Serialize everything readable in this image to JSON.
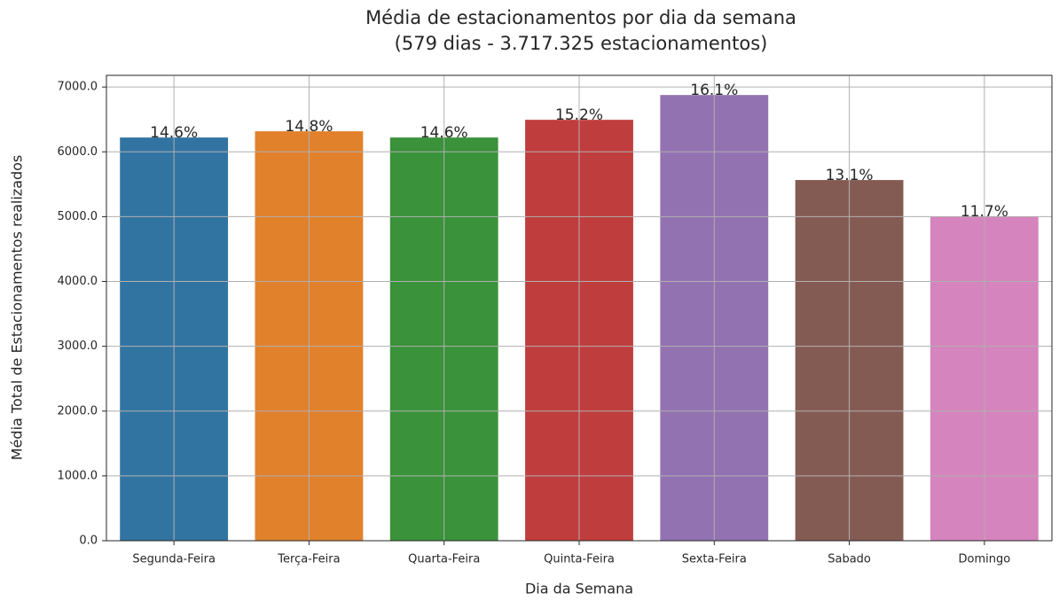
{
  "chart_data": {
    "type": "bar",
    "title": "Média de estacionamentos por dia da semana",
    "subtitle": "(579 dias - 3.717.325 estacionamentos)",
    "xlabel": "Dia da Semana",
    "ylabel": "Média Total de Estacionamentos realizados",
    "categories": [
      "Segunda-Feira",
      "Terça-Feira",
      "Quarta-Feira",
      "Quinta-Feira",
      "Sexta-Feira",
      "Sabado",
      "Domingo"
    ],
    "values": [
      6221,
      6317,
      6221,
      6494,
      6877,
      5565,
      5004
    ],
    "percent_labels": [
      "14.6%",
      "14.8%",
      "14.6%",
      "15.2%",
      "16.1%",
      "13.1%",
      "11.7%"
    ],
    "colors": [
      "#3274a1",
      "#e1812c",
      "#3a923a",
      "#c03d3e",
      "#9372b2",
      "#845b53",
      "#d684bd"
    ],
    "ylim": [
      0,
      7180
    ],
    "yticks": [
      {
        "value": 0,
        "label": "0.0"
      },
      {
        "value": 1000,
        "label": "1000.0"
      },
      {
        "value": 2000,
        "label": "2000.0"
      },
      {
        "value": 3000,
        "label": "3000.0"
      },
      {
        "value": 4000,
        "label": "4000.0"
      },
      {
        "value": 5000,
        "label": "5000.0"
      },
      {
        "value": 6000,
        "label": "6000.0"
      },
      {
        "value": 7000,
        "label": "7000.0"
      }
    ],
    "grid": true
  }
}
